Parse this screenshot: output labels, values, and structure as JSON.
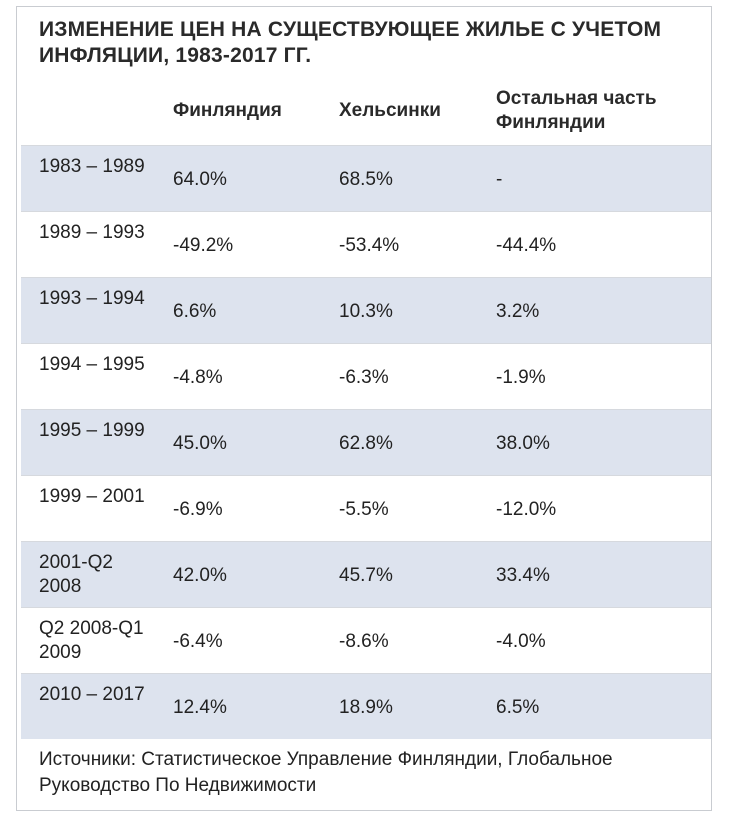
{
  "title": "ИЗМЕНЕНИЕ ЦЕН НА СУЩЕСТВУЮЩЕЕ ЖИЛЬЕ С УЧЕТОМ ИНФЛЯЦИИ, 1983-2017 ГГ.",
  "table": {
    "headers": [
      "",
      "Финляндия",
      "Хельсинки",
      "Остальная часть Финляндии"
    ],
    "rows": [
      {
        "period": "1983 – 1989",
        "finland": "64.0%",
        "helsinki": "68.5%",
        "rest": "-",
        "shaded": true
      },
      {
        "period": "1989 – 1993",
        "finland": "-49.2%",
        "helsinki": "-53.4%",
        "rest": "-44.4%",
        "shaded": false
      },
      {
        "period": "1993 – 1994",
        "finland": "6.6%",
        "helsinki": "10.3%",
        "rest": "3.2%",
        "shaded": true
      },
      {
        "period": "1994 – 1995",
        "finland": "-4.8%",
        "helsinki": "-6.3%",
        "rest": "-1.9%",
        "shaded": false
      },
      {
        "period": "1995 – 1999",
        "finland": "45.0%",
        "helsinki": "62.8%",
        "rest": "38.0%",
        "shaded": true
      },
      {
        "period": "1999 – 2001",
        "finland": "-6.9%",
        "helsinki": "-5.5%",
        "rest": "-12.0%",
        "shaded": false
      },
      {
        "period": "2001-Q2 2008",
        "finland": "42.0%",
        "helsinki": "45.7%",
        "rest": "33.4%",
        "shaded": true
      },
      {
        "period": "Q2 2008-Q1 2009",
        "finland": "-6.4%",
        "helsinki": "-8.6%",
        "rest": "-4.0%",
        "shaded": false
      },
      {
        "period": "2010 – 2017",
        "finland": "12.4%",
        "helsinki": "18.9%",
        "rest": "6.5%",
        "shaded": true
      }
    ]
  },
  "footer": "Источники: Статистическое Управление Финляндии, Глобальное Руководство По Недвижимости",
  "colors": {
    "shaded_row": "#dde3ee",
    "border": "#c9ccd1",
    "text": "#222222"
  }
}
